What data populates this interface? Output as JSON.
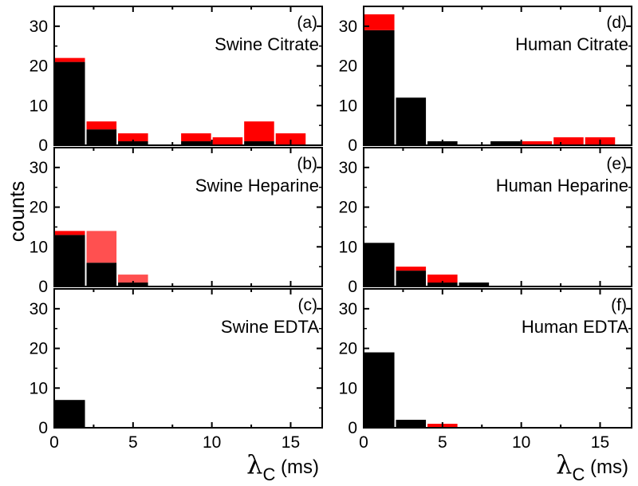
{
  "chart_data": {
    "type": "bar",
    "stacked": true,
    "layout": "3 rows x 2 columns",
    "ylabel": "counts",
    "xlabel": {
      "symbol": "λ",
      "subscript": "C",
      "unit": "(ms)"
    },
    "ylim": [
      0,
      35
    ],
    "xlim": [
      0,
      17
    ],
    "y_ticks": [
      0,
      10,
      20,
      30
    ],
    "x_ticks": [
      0,
      5,
      10,
      15
    ],
    "bin_width": 1.9,
    "colors": {
      "lower": "#000000",
      "upper": "#ff0000",
      "upper_light": "#ff5050",
      "frame": "#000000"
    },
    "panels": [
      {
        "tag": "(a)",
        "title": "Swine Citrate",
        "column": 0,
        "row": 0,
        "bins": [
          {
            "x": 1.0,
            "black": 21,
            "red": 1
          },
          {
            "x": 3.0,
            "black": 4,
            "red": 2
          },
          {
            "x": 5.0,
            "black": 1,
            "red": 2
          },
          {
            "x": 9.0,
            "black": 1,
            "red": 2
          },
          {
            "x": 11.0,
            "black": 0,
            "red": 2
          },
          {
            "x": 13.0,
            "black": 1,
            "red": 5
          },
          {
            "x": 15.0,
            "black": 0,
            "red": 3
          }
        ]
      },
      {
        "tag": "(d)",
        "title": "Human Citrate",
        "column": 1,
        "row": 0,
        "bins": [
          {
            "x": 1.0,
            "black": 29,
            "red": 4
          },
          {
            "x": 3.0,
            "black": 12,
            "red": 0
          },
          {
            "x": 5.0,
            "black": 1,
            "red": 0
          },
          {
            "x": 9.0,
            "black": 1,
            "red": 0
          },
          {
            "x": 11.0,
            "black": 0,
            "red": 1
          },
          {
            "x": 13.0,
            "black": 0,
            "red": 2
          },
          {
            "x": 15.0,
            "black": 0,
            "red": 2
          }
        ]
      },
      {
        "tag": "(b)",
        "title": "Swine Heparine",
        "column": 0,
        "row": 1,
        "bins": [
          {
            "x": 1.0,
            "black": 13,
            "red": 1
          },
          {
            "x": 3.0,
            "black": 6,
            "red": 8,
            "light": true
          },
          {
            "x": 5.0,
            "black": 1,
            "red": 2,
            "light": true
          }
        ]
      },
      {
        "tag": "(e)",
        "title": "Human Heparine",
        "column": 1,
        "row": 1,
        "bins": [
          {
            "x": 1.0,
            "black": 11,
            "red": 0
          },
          {
            "x": 3.0,
            "black": 4,
            "red": 1
          },
          {
            "x": 5.0,
            "black": 1,
            "red": 2
          },
          {
            "x": 7.0,
            "black": 1,
            "red": 0
          }
        ]
      },
      {
        "tag": "(c)",
        "title": "Swine EDTA",
        "column": 0,
        "row": 2,
        "bins": [
          {
            "x": 1.0,
            "black": 7,
            "red": 0
          }
        ]
      },
      {
        "tag": "(f)",
        "title": "Human EDTA",
        "column": 1,
        "row": 2,
        "bins": [
          {
            "x": 1.0,
            "black": 19,
            "red": 0
          },
          {
            "x": 3.0,
            "black": 2,
            "red": 0
          },
          {
            "x": 5.0,
            "black": 0,
            "red": 1
          }
        ]
      }
    ]
  }
}
